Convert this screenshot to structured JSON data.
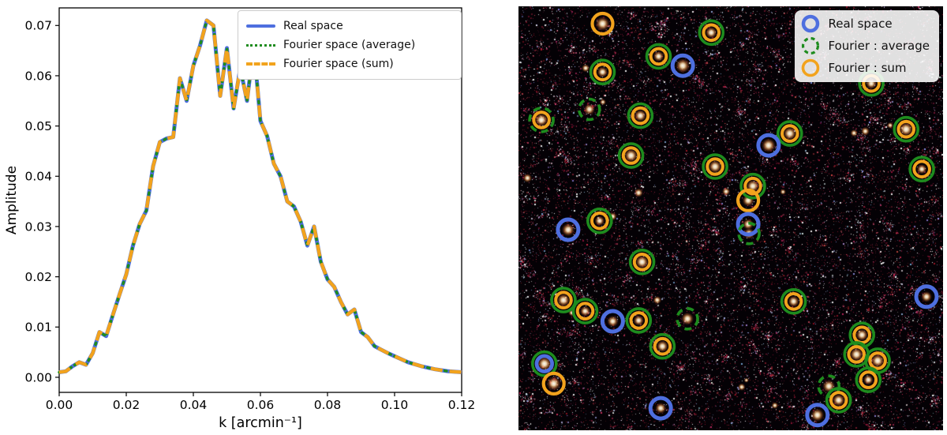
{
  "left_panel": {
    "ylabel": "Amplitude",
    "xlabel": "k [arcmin⁻¹]",
    "xtick_labels": [
      "0.00",
      "0.02",
      "0.04",
      "0.06",
      "0.08",
      "0.10",
      "0.12"
    ],
    "ytick_labels": [
      "0.00",
      "0.01",
      "0.02",
      "0.03",
      "0.04",
      "0.05",
      "0.06",
      "0.07"
    ],
    "legend": {
      "entries": [
        {
          "label": "Real space",
          "color": "#4e6fdf",
          "style": "solid"
        },
        {
          "label": "Fourier space (average)",
          "color": "#1e8c1e",
          "style": "dotted"
        },
        {
          "label": "Fourier space (sum)",
          "color": "#f2a31d",
          "style": "dashed"
        }
      ]
    }
  },
  "right_panel": {
    "legend": {
      "entries": [
        {
          "label": "Real space",
          "color": "#4e6fdf",
          "style": "solid-circle"
        },
        {
          "label": "Fourier : average",
          "color": "#1e8c1e",
          "style": "dashed-circle"
        },
        {
          "label": "Fourier : sum",
          "color": "#f2a31d",
          "style": "solid-circle"
        }
      ]
    },
    "markers": [
      {
        "x": 0.198,
        "y": 0.041,
        "rings": [
          "sum"
        ]
      },
      {
        "x": 0.454,
        "y": 0.062,
        "rings": [
          "avg",
          "sum"
        ]
      },
      {
        "x": 0.33,
        "y": 0.118,
        "rings": [
          "avg",
          "sum"
        ]
      },
      {
        "x": 0.387,
        "y": 0.14,
        "rings": [
          "real"
        ]
      },
      {
        "x": 0.198,
        "y": 0.155,
        "rings": [
          "avg",
          "sum"
        ]
      },
      {
        "x": 0.831,
        "y": 0.182,
        "rings": [
          "avg",
          "sum"
        ]
      },
      {
        "x": 0.054,
        "y": 0.268,
        "rings": [
          "avg_dashed",
          "sum"
        ]
      },
      {
        "x": 0.167,
        "y": 0.243,
        "rings": [
          "avg_dashed"
        ]
      },
      {
        "x": 0.287,
        "y": 0.258,
        "rings": [
          "avg",
          "sum"
        ]
      },
      {
        "x": 0.639,
        "y": 0.3,
        "rings": [
          "avg",
          "sum"
        ]
      },
      {
        "x": 0.913,
        "y": 0.29,
        "rings": [
          "avg",
          "sum"
        ]
      },
      {
        "x": 0.265,
        "y": 0.352,
        "rings": [
          "avg",
          "sum"
        ]
      },
      {
        "x": 0.589,
        "y": 0.328,
        "rings": [
          "real"
        ]
      },
      {
        "x": 0.463,
        "y": 0.378,
        "rings": [
          "avg",
          "sum"
        ]
      },
      {
        "x": 0.95,
        "y": 0.384,
        "rings": [
          "avg",
          "sum"
        ]
      },
      {
        "x": 0.552,
        "y": 0.424,
        "rings": [
          "avg",
          "sum"
        ]
      },
      {
        "x": 0.541,
        "y": 0.458,
        "rings": [
          "sum"
        ]
      },
      {
        "x": 0.541,
        "y": 0.514,
        "rings": [
          "real"
        ]
      },
      {
        "x": 0.191,
        "y": 0.506,
        "rings": [
          "avg",
          "sum"
        ]
      },
      {
        "x": 0.117,
        "y": 0.527,
        "rings": [
          "real"
        ]
      },
      {
        "x": 0.543,
        "y": 0.536,
        "rings": [
          "avg_dashed"
        ]
      },
      {
        "x": 0.291,
        "y": 0.603,
        "rings": [
          "avg",
          "sum"
        ]
      },
      {
        "x": 0.106,
        "y": 0.693,
        "rings": [
          "avg",
          "sum"
        ]
      },
      {
        "x": 0.157,
        "y": 0.719,
        "rings": [
          "avg",
          "sum"
        ]
      },
      {
        "x": 0.222,
        "y": 0.743,
        "rings": [
          "real"
        ]
      },
      {
        "x": 0.283,
        "y": 0.741,
        "rings": [
          "avg",
          "sum"
        ]
      },
      {
        "x": 0.398,
        "y": 0.737,
        "rings": [
          "avg_dashed"
        ]
      },
      {
        "x": 0.339,
        "y": 0.802,
        "rings": [
          "avg",
          "sum"
        ]
      },
      {
        "x": 0.648,
        "y": 0.696,
        "rings": [
          "avg",
          "sum"
        ]
      },
      {
        "x": 0.961,
        "y": 0.685,
        "rings": [
          "real"
        ]
      },
      {
        "x": 0.809,
        "y": 0.775,
        "rings": [
          "avg",
          "sum"
        ]
      },
      {
        "x": 0.796,
        "y": 0.821,
        "rings": [
          "avg",
          "sum"
        ]
      },
      {
        "x": 0.846,
        "y": 0.836,
        "rings": [
          "avg",
          "sum"
        ]
      },
      {
        "x": 0.731,
        "y": 0.896,
        "rings": [
          "avg_dashed"
        ]
      },
      {
        "x": 0.824,
        "y": 0.881,
        "rings": [
          "avg",
          "sum"
        ]
      },
      {
        "x": 0.061,
        "y": 0.843,
        "rings": [
          "avg",
          "real"
        ]
      },
      {
        "x": 0.083,
        "y": 0.89,
        "rings": [
          "sum"
        ]
      },
      {
        "x": 0.335,
        "y": 0.948,
        "rings": [
          "real"
        ]
      },
      {
        "x": 0.754,
        "y": 0.929,
        "rings": [
          "avg",
          "sum"
        ]
      },
      {
        "x": 0.704,
        "y": 0.964,
        "rings": [
          "real"
        ]
      }
    ]
  },
  "chart_data": {
    "type": "line",
    "title": "",
    "xlabel": "k [arcmin⁻¹]",
    "ylabel": "Amplitude",
    "xlim": [
      0,
      0.12
    ],
    "ylim": [
      -0.003,
      0.0735
    ],
    "grid": false,
    "legend_position": "upper right",
    "note": "All three series are visually coincident along the whole curve.",
    "x": [
      0.0,
      0.002,
      0.004,
      0.006,
      0.008,
      0.01,
      0.012,
      0.014,
      0.016,
      0.018,
      0.02,
      0.022,
      0.024,
      0.026,
      0.028,
      0.03,
      0.032,
      0.034,
      0.036,
      0.038,
      0.04,
      0.042,
      0.044,
      0.046,
      0.048,
      0.05,
      0.052,
      0.054,
      0.056,
      0.058,
      0.06,
      0.062,
      0.064,
      0.066,
      0.068,
      0.07,
      0.072,
      0.074,
      0.076,
      0.078,
      0.08,
      0.082,
      0.084,
      0.086,
      0.088,
      0.09,
      0.092,
      0.094,
      0.096,
      0.098,
      0.1,
      0.102,
      0.104,
      0.106,
      0.108,
      0.11,
      0.112,
      0.114,
      0.116,
      0.118,
      0.12
    ],
    "y_shared": [
      0.001,
      0.0012,
      0.0022,
      0.003,
      0.0025,
      0.0048,
      0.009,
      0.0082,
      0.0124,
      0.0165,
      0.0205,
      0.0262,
      0.0305,
      0.0332,
      0.042,
      0.0468,
      0.0475,
      0.0478,
      0.0595,
      0.055,
      0.062,
      0.066,
      0.071,
      0.07,
      0.056,
      0.0655,
      0.0535,
      0.0615,
      0.055,
      0.066,
      0.051,
      0.048,
      0.0425,
      0.04,
      0.035,
      0.034,
      0.031,
      0.0262,
      0.03,
      0.023,
      0.0195,
      0.018,
      0.015,
      0.0125,
      0.0135,
      0.009,
      0.008,
      0.0062,
      0.0055,
      0.0048,
      0.0042,
      0.0036,
      0.003,
      0.0026,
      0.0022,
      0.0019,
      0.0016,
      0.0014,
      0.0012,
      0.0011,
      0.001
    ],
    "series": [
      {
        "name": "Real space",
        "color": "#4e6fdf",
        "linestyle": "solid",
        "linewidth": 5,
        "y": "y_shared"
      },
      {
        "name": "Fourier space (average)",
        "color": "#1e8c1e",
        "linestyle": "dotted",
        "linewidth": 3.4,
        "y": "y_shared"
      },
      {
        "name": "Fourier space (sum)",
        "color": "#f2a31d",
        "linestyle": "dashed",
        "linewidth": 4.4,
        "y": "y_shared"
      }
    ]
  }
}
